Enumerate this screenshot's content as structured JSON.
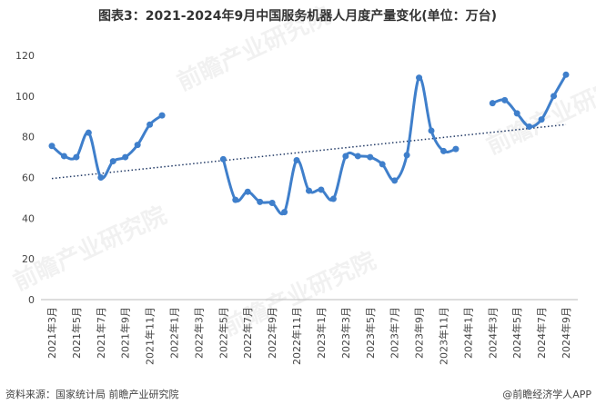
{
  "chart_data": {
    "type": "line",
    "title": "图表3：2021-2024年9月中国服务机器人月度产量变化(单位：万台)",
    "categories": [
      "2021年3月",
      null,
      "2021年5月",
      null,
      "2021年7月",
      null,
      "2021年9月",
      null,
      "2021年11月",
      null,
      "2022年1月",
      null,
      "2022年3月",
      null,
      "2022年5月",
      null,
      "2022年7月",
      null,
      "2022年9月",
      null,
      "2022年11月",
      null,
      "2023年1月",
      null,
      "2023年3月",
      null,
      "2023年5月",
      null,
      "2023年7月",
      null,
      "2023年9月",
      null,
      "2023年11月",
      null,
      "2024年1月",
      null,
      "2024年3月",
      null,
      "2024年5月",
      null,
      "2024年7月",
      null,
      "2024年9月"
    ],
    "series": [
      {
        "color": "#3f7fcb",
        "values": [
          75.5,
          70.5,
          70,
          82,
          60,
          68,
          70,
          76,
          86,
          90.5,
          null,
          null,
          null,
          null,
          69,
          49,
          53,
          48,
          47.5,
          43,
          68.5,
          53.5,
          54,
          49.5,
          70.5,
          70.5,
          70,
          66.5,
          58.5,
          71,
          109,
          83,
          73,
          74,
          null,
          null,
          96.5,
          98,
          91.5,
          85,
          88.5,
          100,
          110.5
        ]
      }
    ],
    "trendline": {
      "start": 59.5,
      "end": 86,
      "color": "#223a66"
    },
    "ylim": [
      0,
      120
    ],
    "yticks": [
      0,
      20,
      40,
      60,
      80,
      100,
      120
    ],
    "grid": false,
    "source": "资料来源：国家统计局 前瞻产业研究院",
    "credit": "@前瞻经济学人APP",
    "watermark": "前瞻产业研究院"
  }
}
